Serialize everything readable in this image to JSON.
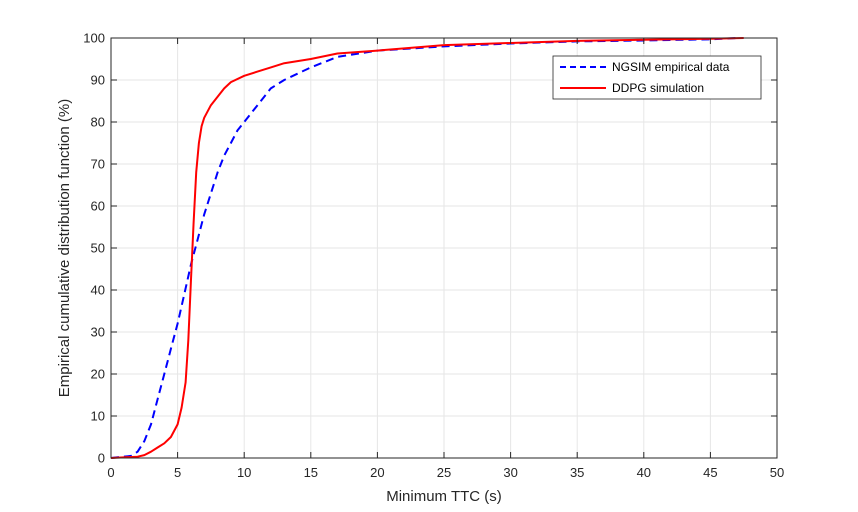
{
  "chart_data": {
    "type": "line",
    "title": "",
    "xlabel": "Minimum TTC (s)",
    "ylabel": "Empirical cumulative distribution function (%)",
    "xlim": [
      0,
      50
    ],
    "ylim": [
      0,
      100
    ],
    "xticks": [
      "0",
      "5",
      "10",
      "15",
      "20",
      "25",
      "30",
      "35",
      "40",
      "45",
      "50"
    ],
    "yticks": [
      "0",
      "10",
      "20",
      "30",
      "40",
      "50",
      "60",
      "70",
      "80",
      "90",
      "100"
    ],
    "grid": true,
    "legend_position": "top-right",
    "series": [
      {
        "name": "NGSIM empirical data",
        "color": "#0000ff",
        "style": "dashed",
        "x": [
          0,
          1.5,
          2,
          2.5,
          3,
          3.5,
          4,
          4.5,
          5,
          5.5,
          6,
          6.5,
          7,
          7.5,
          8,
          8.5,
          9,
          9.5,
          10,
          11,
          12,
          13,
          14,
          15,
          17,
          20,
          25,
          30,
          35,
          40,
          45,
          47
        ],
        "y": [
          0,
          0.5,
          1.5,
          4,
          8,
          14,
          20,
          26,
          32,
          39,
          46,
          52,
          58,
          63,
          68,
          72,
          75,
          78,
          80,
          84,
          88,
          90,
          91.5,
          93,
          95.5,
          97,
          98,
          98.7,
          99.2,
          99.4,
          99.7,
          100
        ]
      },
      {
        "name": "DDPG simulation",
        "color": "#ff0000",
        "style": "solid",
        "x": [
          0,
          2,
          2.5,
          3,
          3.5,
          4,
          4.5,
          5,
          5.3,
          5.6,
          5.8,
          6,
          6.2,
          6.4,
          6.6,
          6.8,
          7,
          7.5,
          8,
          8.5,
          9,
          10,
          11,
          12,
          13,
          14,
          15,
          17,
          20,
          25,
          30,
          35,
          40,
          45,
          47.5
        ],
        "y": [
          0,
          0.3,
          0.7,
          1.5,
          2.5,
          3.5,
          5,
          8,
          12,
          18,
          28,
          42,
          56,
          68,
          75,
          79,
          81,
          84,
          86,
          88,
          89.5,
          91,
          92,
          93,
          94,
          94.5,
          95,
          96.3,
          97,
          98.3,
          98.8,
          99.3,
          99.6,
          99.8,
          100
        ]
      }
    ]
  }
}
